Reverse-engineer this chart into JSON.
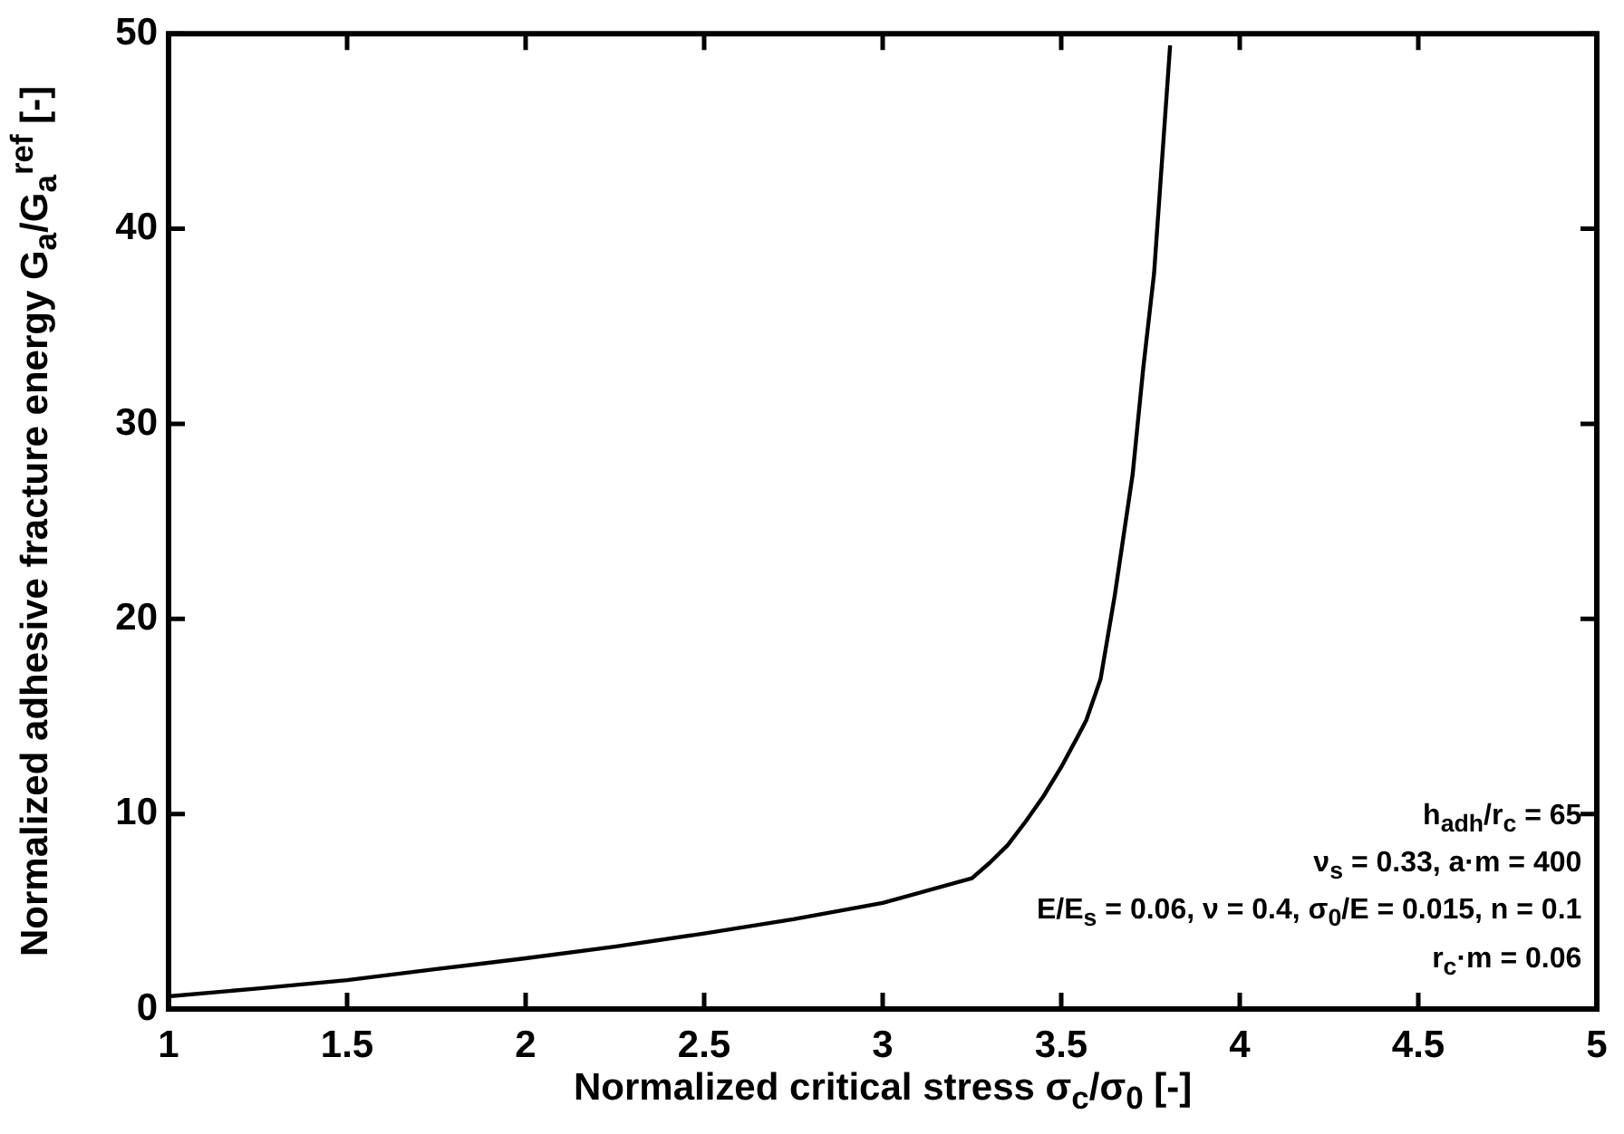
{
  "chart_data": {
    "type": "line",
    "xlabel": "Normalized critical stress σ$_{c}$/σ$_{0}$ [-]",
    "ylabel": "Normalized adhesive fracture energy G$_{a}$/G$_{a}$$^{ref}$ [-]",
    "x": [
      1.0,
      1.25,
      1.5,
      1.75,
      2.0,
      2.25,
      2.5,
      2.75,
      3.0,
      3.25,
      3.3,
      3.35,
      3.4,
      3.45,
      3.5,
      3.55,
      3.57,
      3.61,
      3.65,
      3.7,
      3.73,
      3.76,
      3.805
    ],
    "series": [
      {
        "color": "#000000",
        "values": [
          0.65,
          1.05,
          1.48,
          2.05,
          2.6,
          3.2,
          3.87,
          4.6,
          5.44,
          6.7,
          7.5,
          8.4,
          9.6,
          10.9,
          12.4,
          14.1,
          14.8,
          16.9,
          21.2,
          27.4,
          32.9,
          37.7,
          49.4
        ]
      }
    ],
    "xlim": [
      1,
      5
    ],
    "xticks": [
      1,
      1.5,
      2,
      2.5,
      3,
      3.5,
      4,
      4.5,
      5
    ],
    "ylim": [
      0,
      50
    ],
    "yticks": [
      0,
      10,
      20,
      30,
      40,
      50
    ],
    "legend": false,
    "marker": "none",
    "line_style": "solid",
    "annotations": [
      "h$_{adh}$/r$_{c}$ = 65",
      "ν$_{s}$ = 0.33, a·m = 400",
      "E/E$_{s}$ = 0.06, ν = 0.4, σ$_{0}$/E = 0.015, n = 0.1",
      "r$_{c}$·m = 0.06"
    ]
  }
}
